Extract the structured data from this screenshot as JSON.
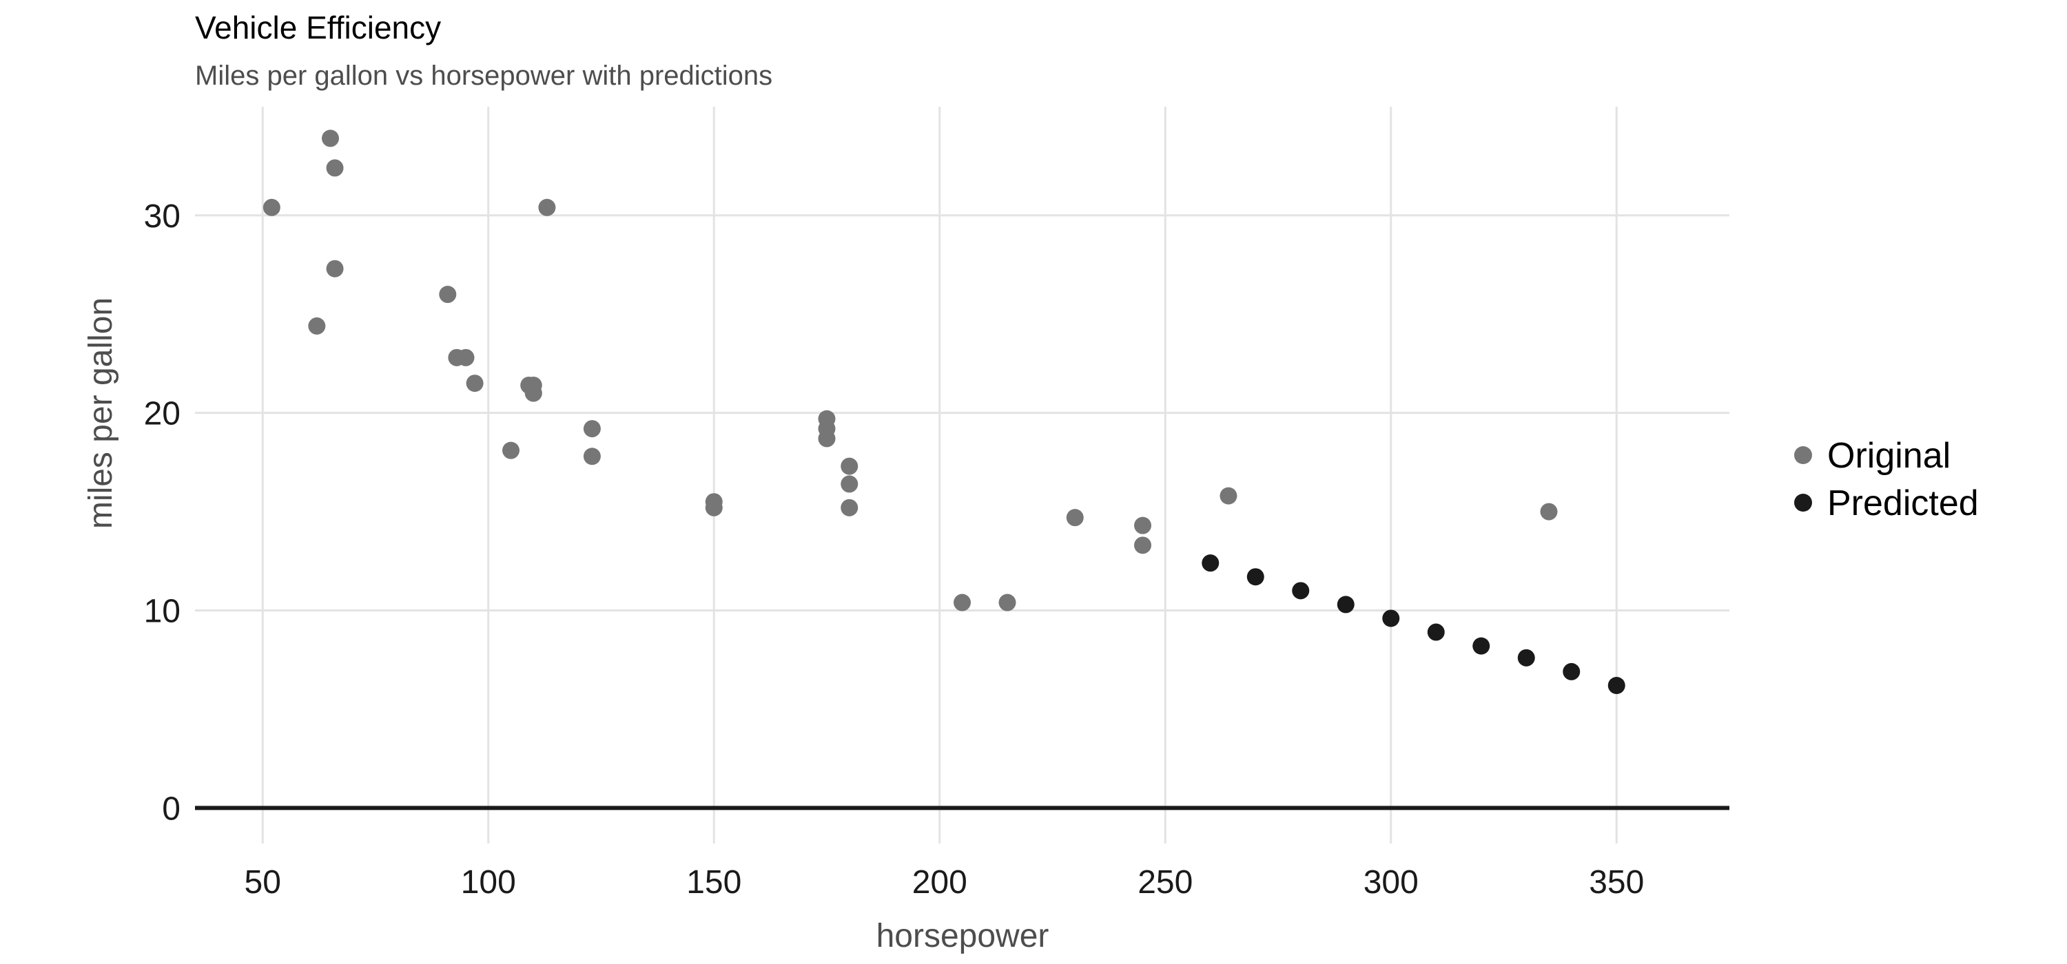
{
  "chart_data": {
    "type": "scatter",
    "title": "Vehicle Efficiency",
    "subtitle": "Miles per gallon vs horsepower with predictions",
    "xlabel": "horsepower",
    "ylabel": "miles per gallon",
    "xlim": [
      35,
      375
    ],
    "ylim": [
      -1.8,
      35.5
    ],
    "x_ticks": [
      50,
      100,
      150,
      200,
      250,
      300,
      350
    ],
    "y_ticks": [
      0,
      10,
      20,
      30
    ],
    "grid": true,
    "zero_line": true,
    "legend": {
      "position": "right"
    },
    "series": [
      {
        "name": "Original",
        "color": "#767676",
        "points": [
          [
            110,
            21.0
          ],
          [
            110,
            21.0
          ],
          [
            93,
            22.8
          ],
          [
            110,
            21.4
          ],
          [
            175,
            18.7
          ],
          [
            105,
            18.1
          ],
          [
            245,
            14.3
          ],
          [
            62,
            24.4
          ],
          [
            95,
            22.8
          ],
          [
            123,
            19.2
          ],
          [
            123,
            17.8
          ],
          [
            180,
            16.4
          ],
          [
            180,
            17.3
          ],
          [
            180,
            15.2
          ],
          [
            205,
            10.4
          ],
          [
            215,
            10.4
          ],
          [
            230,
            14.7
          ],
          [
            66,
            32.4
          ],
          [
            52,
            30.4
          ],
          [
            65,
            33.9
          ],
          [
            97,
            21.5
          ],
          [
            150,
            15.5
          ],
          [
            150,
            15.2
          ],
          [
            245,
            13.3
          ],
          [
            175,
            19.2
          ],
          [
            66,
            27.3
          ],
          [
            91,
            26.0
          ],
          [
            113,
            30.4
          ],
          [
            264,
            15.8
          ],
          [
            175,
            19.7
          ],
          [
            335,
            15.0
          ],
          [
            109,
            21.4
          ]
        ]
      },
      {
        "name": "Predicted",
        "color": "#1a1a1a",
        "points": [
          [
            260,
            12.4
          ],
          [
            270,
            11.7
          ],
          [
            280,
            11.0
          ],
          [
            290,
            10.3
          ],
          [
            300,
            9.6
          ],
          [
            310,
            8.9
          ],
          [
            320,
            8.2
          ],
          [
            330,
            7.6
          ],
          [
            340,
            6.9
          ],
          [
            350,
            6.2
          ]
        ]
      }
    ]
  }
}
